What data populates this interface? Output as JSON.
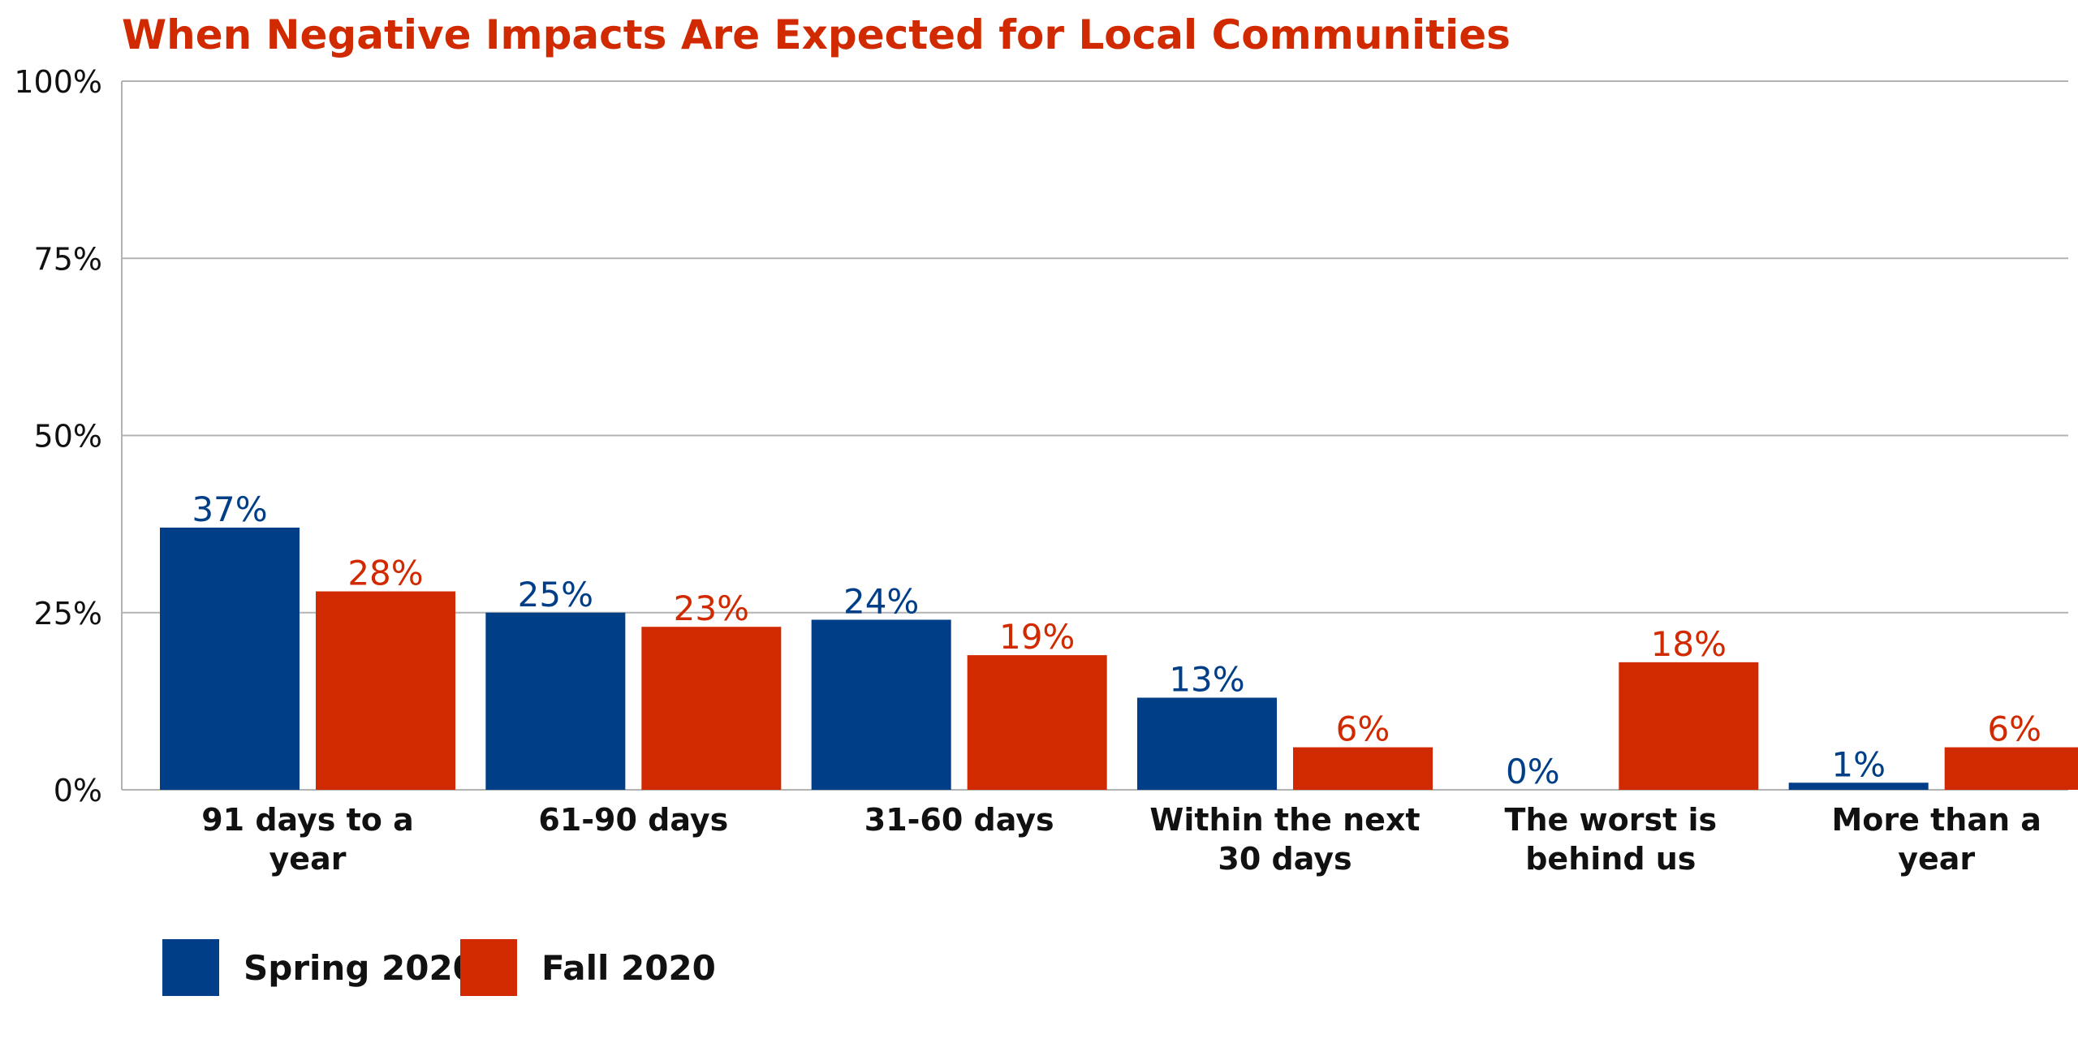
{
  "colors": {
    "spring": "#003f87",
    "fall": "#d12a00",
    "title": "#d12a00",
    "grid": "#b3b3b3",
    "axis_text": "#111111",
    "background": "#ffffff"
  },
  "chart_data": {
    "type": "bar",
    "title": "When Negative Impacts Are Expected for Local Communities",
    "xlabel": "",
    "ylabel": "",
    "ylim": [
      0,
      100
    ],
    "y_ticks": [
      0,
      25,
      50,
      75,
      100
    ],
    "y_tick_labels": [
      "0%",
      "25%",
      "50%",
      "75%",
      "100%"
    ],
    "grid": true,
    "legend_position": "bottom-left",
    "categories": [
      [
        "91 days to a",
        "year"
      ],
      [
        "61-90 days"
      ],
      [
        "31-60 days"
      ],
      [
        "Within the next",
        "30 days"
      ],
      [
        "The worst is",
        "behind us"
      ],
      [
        "More than a",
        "year"
      ]
    ],
    "series": [
      {
        "name": "Spring 2020",
        "values": [
          37,
          25,
          24,
          13,
          0,
          1
        ],
        "labels": [
          "37%",
          "25%",
          "24%",
          "13%",
          "0%",
          "1%"
        ]
      },
      {
        "name": "Fall 2020",
        "values": [
          28,
          23,
          19,
          6,
          18,
          6
        ],
        "labels": [
          "28%",
          "23%",
          "19%",
          "6%",
          "18%",
          "6%"
        ]
      }
    ]
  }
}
